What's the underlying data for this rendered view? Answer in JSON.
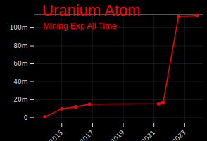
{
  "chart_data": {
    "type": "line",
    "title": "Uranium Atom",
    "subtitle": "Mining Exp All Time",
    "x": [
      2013.9,
      2015.0,
      2015.9,
      2016.8,
      2021.3,
      2021.5,
      2021.6,
      2022.6,
      2023.8
    ],
    "values": [
      1,
      10,
      12,
      15,
      15.5,
      16.5,
      17,
      113,
      114
    ],
    "color": "#ff0000",
    "marker": "circle",
    "xlim": [
      2013.2,
      2024.2
    ],
    "xticks": [
      2015,
      2017,
      2019,
      2021,
      2023
    ],
    "ylim": [
      -6,
      115
    ],
    "yticks": [
      0,
      {
        "value": 20,
        "label": "20m"
      },
      {
        "value": 40,
        "label": "40m"
      },
      {
        "value": 60,
        "label": "60m"
      },
      {
        "value": 80,
        "label": "80m"
      },
      {
        "value": 100,
        "label": "100m"
      }
    ],
    "grid": true
  }
}
